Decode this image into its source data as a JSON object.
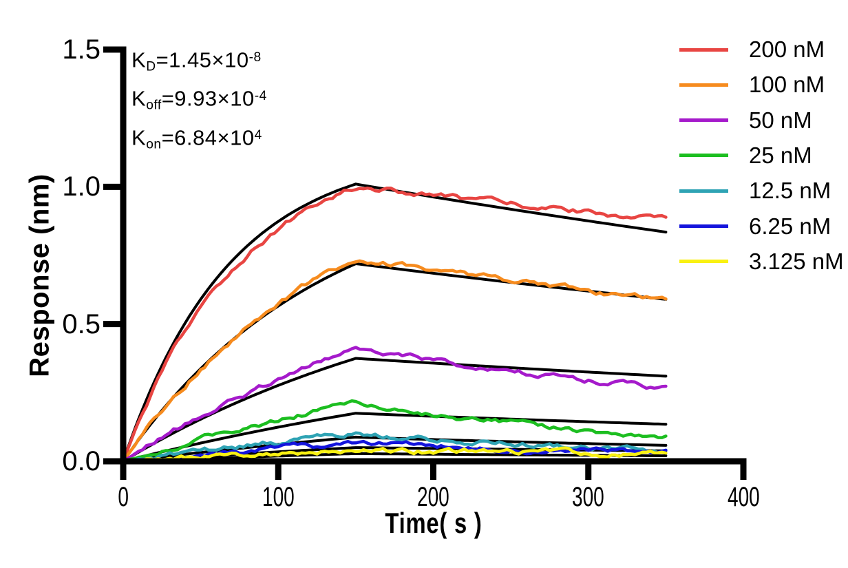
{
  "chart_data": {
    "type": "line",
    "title": "",
    "xlabel": "Time( s )",
    "ylabel": "Response (nm)",
    "xlim": [
      0,
      400
    ],
    "ylim": [
      0,
      1.5
    ],
    "x_ticks": [
      "0",
      "100",
      "200",
      "300",
      "400"
    ],
    "y_ticks": [
      "0.0",
      "0.5",
      "1.0",
      "1.5"
    ],
    "grid": false,
    "legend_position": "top-right",
    "axis_color": "#000000",
    "fit_color": "#000000",
    "association_end_s": 150,
    "curve_end_s": 350,
    "sample_step_s": 2.5,
    "kinetics": {
      "KD_M": 1.45e-08,
      "koff_per_s": 0.000993,
      "kon_per_M_s": 68400.0
    },
    "series": [
      {
        "label": "200 nM",
        "conc_nM": 200,
        "color": "#E84542",
        "data_peak_nm": 1.0,
        "data_end_nm": 0.88,
        "fit_peak_nm": 1.01,
        "fit_end_nm": 0.835
      },
      {
        "label": "100 nM",
        "conc_nM": 100,
        "color": "#F68B1E",
        "data_peak_nm": 0.74,
        "data_end_nm": 0.585,
        "fit_peak_nm": 0.72,
        "fit_end_nm": 0.59
      },
      {
        "label": "50 nM",
        "conc_nM": 50,
        "color": "#A51ACB",
        "data_peak_nm": 0.41,
        "data_end_nm": 0.265,
        "fit_peak_nm": 0.375,
        "fit_end_nm": 0.31
      },
      {
        "label": "25 nM",
        "conc_nM": 25,
        "color": "#1CBE20",
        "data_peak_nm": 0.215,
        "data_end_nm": 0.09,
        "fit_peak_nm": 0.175,
        "fit_end_nm": 0.135
      },
      {
        "label": "12.5 nM",
        "conc_nM": 12.5,
        "color": "#2EA3B4",
        "data_peak_nm": 0.1,
        "data_end_nm": 0.04,
        "fit_peak_nm": 0.088,
        "fit_end_nm": 0.058
      },
      {
        "label": "6.25 nM",
        "conc_nM": 6.25,
        "color": "#1414DC",
        "data_peak_nm": 0.065,
        "data_end_nm": 0.03,
        "fit_peak_nm": 0.05,
        "fit_end_nm": 0.038
      },
      {
        "label": "3.125 nM",
        "conc_nM": 3.125,
        "color": "#F9F112",
        "data_peak_nm": 0.042,
        "data_end_nm": 0.025,
        "fit_peak_nm": 0.028,
        "fit_end_nm": 0.02
      }
    ]
  },
  "annotations": {
    "kd": {
      "symbol": "K",
      "subscript": "D",
      "value": "=1.45×10",
      "exponent": "-8"
    },
    "koff": {
      "symbol": "K",
      "subscript": "off",
      "value": "=9.93×10",
      "exponent": "-4"
    },
    "kon": {
      "symbol": "K",
      "subscript": "on",
      "value": "=6.84×10",
      "exponent": "4"
    }
  }
}
